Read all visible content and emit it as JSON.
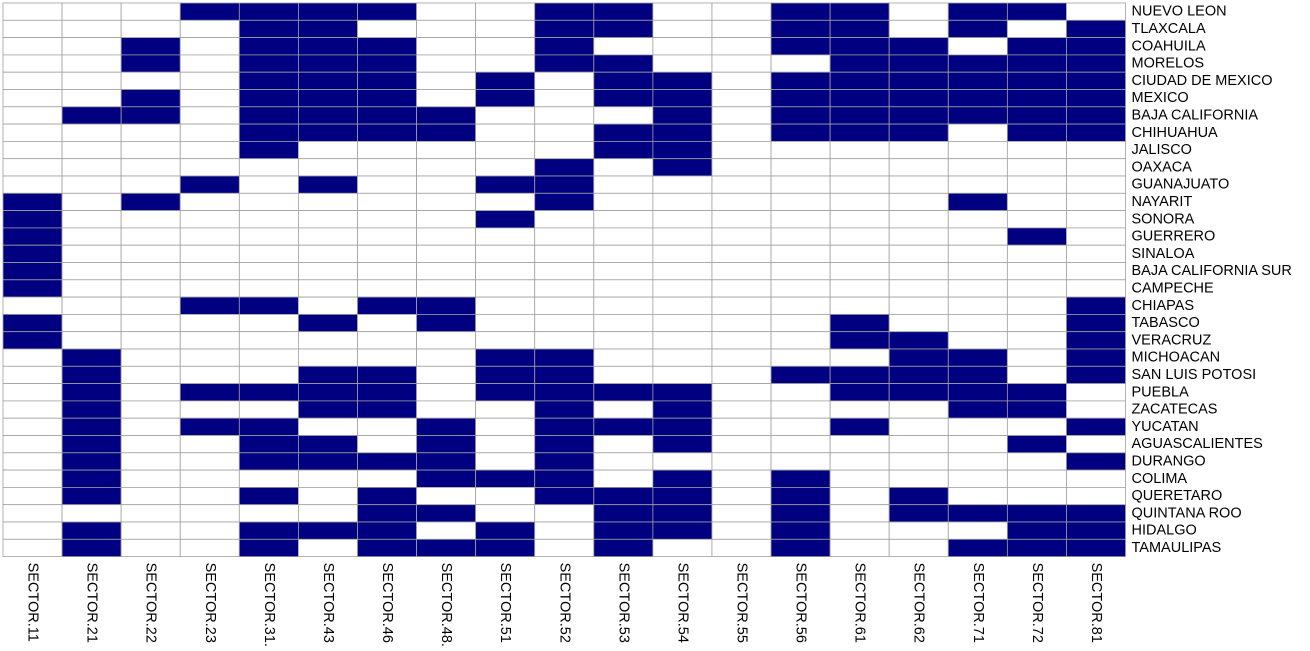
{
  "chart_data": {
    "type": "heatmap",
    "title": "",
    "xlabel": "",
    "ylabel": "",
    "colors": {
      "on": "#000080",
      "off": "#ffffff",
      "grid": "#a0a0a0"
    },
    "columns": [
      "SECTOR.11",
      "SECTOR.21",
      "SECTOR.22",
      "SECTOR.23",
      "SECTOR.31.",
      "SECTOR.43",
      "SECTOR.46",
      "SECTOR.48.",
      "SECTOR.51",
      "SECTOR.52",
      "SECTOR.53",
      "SECTOR.54",
      "SECTOR.55",
      "SECTOR.56",
      "SECTOR.61",
      "SECTOR.62",
      "SECTOR.71",
      "SECTOR.72",
      "SECTOR.81"
    ],
    "rows": [
      "NUEVO LEON",
      "TLAXCALA",
      "COAHUILA",
      "MORELOS",
      "CIUDAD DE MEXICO",
      "MEXICO",
      "BAJA CALIFORNIA",
      "CHIHUAHUA",
      "JALISCO",
      "OAXACA",
      "GUANAJUATO",
      "NAYARIT",
      "SONORA",
      "GUERRERO",
      "SINALOA",
      "BAJA CALIFORNIA SUR",
      "CAMPECHE",
      "CHIAPAS",
      "TABASCO",
      "VERACRUZ",
      "MICHOACAN",
      "SAN LUIS POTOSI",
      "PUEBLA",
      "ZACATECAS",
      "YUCATAN",
      "AGUASCALIENTES",
      "DURANGO",
      "COLIMA",
      "QUERETARO",
      "QUINTANA ROO",
      "HIDALGO",
      "TAMAULIPAS"
    ],
    "values": [
      [
        0,
        0,
        0,
        1,
        1,
        1,
        1,
        0,
        0,
        1,
        1,
        0,
        0,
        1,
        1,
        0,
        1,
        1,
        0
      ],
      [
        0,
        0,
        0,
        0,
        1,
        1,
        0,
        0,
        0,
        1,
        1,
        0,
        0,
        1,
        1,
        0,
        1,
        0,
        1
      ],
      [
        0,
        0,
        1,
        0,
        1,
        1,
        1,
        0,
        0,
        1,
        0,
        0,
        0,
        1,
        1,
        1,
        0,
        1,
        1
      ],
      [
        0,
        0,
        1,
        0,
        1,
        1,
        1,
        0,
        0,
        1,
        1,
        0,
        0,
        0,
        1,
        1,
        1,
        1,
        1
      ],
      [
        0,
        0,
        0,
        0,
        1,
        1,
        1,
        0,
        1,
        0,
        1,
        1,
        0,
        1,
        1,
        1,
        1,
        1,
        1
      ],
      [
        0,
        0,
        1,
        0,
        1,
        1,
        1,
        0,
        1,
        0,
        1,
        1,
        0,
        1,
        1,
        1,
        1,
        1,
        1
      ],
      [
        0,
        1,
        1,
        0,
        1,
        1,
        1,
        1,
        0,
        0,
        0,
        1,
        0,
        1,
        1,
        1,
        1,
        1,
        1
      ],
      [
        0,
        0,
        0,
        0,
        1,
        1,
        1,
        1,
        0,
        0,
        1,
        1,
        0,
        1,
        1,
        1,
        0,
        1,
        1
      ],
      [
        0,
        0,
        0,
        0,
        1,
        0,
        0,
        0,
        0,
        0,
        1,
        1,
        0,
        0,
        0,
        0,
        0,
        0,
        0
      ],
      [
        0,
        0,
        0,
        0,
        0,
        0,
        0,
        0,
        0,
        1,
        0,
        1,
        0,
        0,
        0,
        0,
        0,
        0,
        0
      ],
      [
        0,
        0,
        0,
        1,
        0,
        1,
        0,
        0,
        1,
        1,
        0,
        0,
        0,
        0,
        0,
        0,
        0,
        0,
        0
      ],
      [
        1,
        0,
        1,
        0,
        0,
        0,
        0,
        0,
        0,
        1,
        0,
        0,
        0,
        0,
        0,
        0,
        1,
        0,
        0
      ],
      [
        1,
        0,
        0,
        0,
        0,
        0,
        0,
        0,
        1,
        0,
        0,
        0,
        0,
        0,
        0,
        0,
        0,
        0,
        0
      ],
      [
        1,
        0,
        0,
        0,
        0,
        0,
        0,
        0,
        0,
        0,
        0,
        0,
        0,
        0,
        0,
        0,
        0,
        1,
        0
      ],
      [
        1,
        0,
        0,
        0,
        0,
        0,
        0,
        0,
        0,
        0,
        0,
        0,
        0,
        0,
        0,
        0,
        0,
        0,
        0
      ],
      [
        1,
        0,
        0,
        0,
        0,
        0,
        0,
        0,
        0,
        0,
        0,
        0,
        0,
        0,
        0,
        0,
        0,
        0,
        0
      ],
      [
        1,
        0,
        0,
        0,
        0,
        0,
        0,
        0,
        0,
        0,
        0,
        0,
        0,
        0,
        0,
        0,
        0,
        0,
        0
      ],
      [
        0,
        0,
        0,
        1,
        1,
        0,
        1,
        1,
        0,
        0,
        0,
        0,
        0,
        0,
        0,
        0,
        0,
        0,
        1
      ],
      [
        1,
        0,
        0,
        0,
        0,
        1,
        0,
        1,
        0,
        0,
        0,
        0,
        0,
        0,
        1,
        0,
        0,
        0,
        1
      ],
      [
        1,
        0,
        0,
        0,
        0,
        0,
        0,
        0,
        0,
        0,
        0,
        0,
        0,
        0,
        1,
        1,
        0,
        0,
        1
      ],
      [
        0,
        1,
        0,
        0,
        0,
        0,
        0,
        0,
        1,
        1,
        0,
        0,
        0,
        0,
        0,
        1,
        1,
        0,
        1
      ],
      [
        0,
        1,
        0,
        0,
        0,
        1,
        1,
        0,
        1,
        1,
        0,
        0,
        0,
        1,
        1,
        1,
        1,
        0,
        1
      ],
      [
        0,
        1,
        0,
        1,
        1,
        1,
        1,
        0,
        1,
        1,
        1,
        1,
        0,
        0,
        1,
        1,
        1,
        1,
        0
      ],
      [
        0,
        1,
        0,
        0,
        0,
        1,
        1,
        0,
        0,
        1,
        0,
        1,
        0,
        0,
        0,
        0,
        1,
        1,
        0
      ],
      [
        0,
        1,
        0,
        1,
        1,
        0,
        0,
        1,
        0,
        1,
        1,
        1,
        0,
        0,
        1,
        0,
        0,
        0,
        1
      ],
      [
        0,
        1,
        0,
        0,
        1,
        1,
        0,
        1,
        0,
        1,
        0,
        1,
        0,
        0,
        0,
        0,
        0,
        1,
        0
      ],
      [
        0,
        1,
        0,
        0,
        1,
        1,
        1,
        1,
        0,
        1,
        0,
        0,
        0,
        0,
        0,
        0,
        0,
        0,
        1
      ],
      [
        0,
        1,
        0,
        0,
        0,
        0,
        0,
        1,
        1,
        1,
        0,
        1,
        0,
        1,
        0,
        0,
        0,
        0,
        0
      ],
      [
        0,
        1,
        0,
        0,
        1,
        0,
        1,
        0,
        0,
        1,
        1,
        1,
        0,
        1,
        0,
        1,
        0,
        0,
        0
      ],
      [
        0,
        0,
        0,
        0,
        0,
        0,
        1,
        1,
        0,
        0,
        1,
        1,
        0,
        1,
        0,
        1,
        1,
        1,
        1
      ],
      [
        0,
        1,
        0,
        0,
        1,
        1,
        1,
        0,
        1,
        0,
        1,
        1,
        0,
        1,
        0,
        0,
        0,
        1,
        1
      ],
      [
        0,
        1,
        0,
        0,
        1,
        0,
        1,
        1,
        1,
        0,
        1,
        0,
        0,
        1,
        0,
        0,
        1,
        1,
        1
      ]
    ]
  }
}
